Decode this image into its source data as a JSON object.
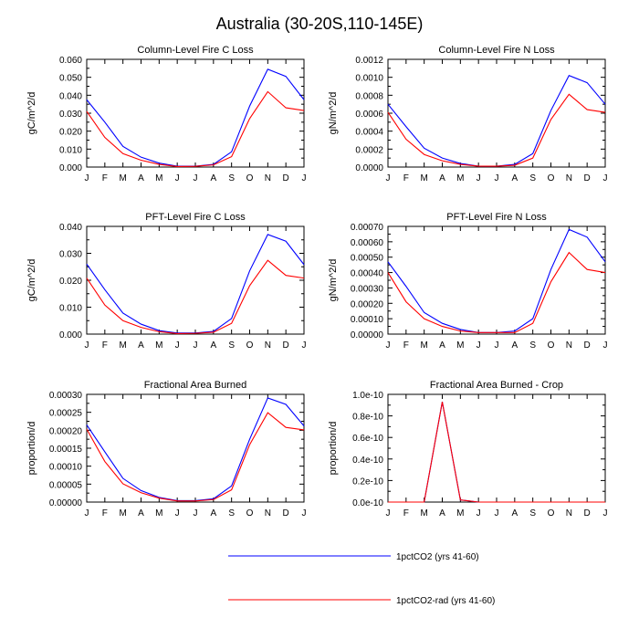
{
  "figure": {
    "title": "Australia (30-20S,110-145E)"
  },
  "legend": {
    "items": [
      {
        "label": "1pctCO2 (yrs 41-60)",
        "color": "#0000ff"
      },
      {
        "label": "1pctCO2-rad (yrs 41-60)",
        "color": "#ff0000"
      }
    ]
  },
  "chart_data": [
    {
      "type": "line",
      "title": "Column-Level Fire C Loss",
      "ylabel": "gC/m^2/d",
      "categories": [
        "J",
        "F",
        "M",
        "A",
        "M",
        "J",
        "J",
        "A",
        "S",
        "O",
        "N",
        "D",
        "J"
      ],
      "ylim": [
        0,
        0.06
      ],
      "yticks": [
        "0.000",
        "0.010",
        "0.020",
        "0.030",
        "0.040",
        "0.050",
        "0.060"
      ],
      "series": [
        {
          "name": "1pctCO2 (yrs 41-60)",
          "color": "#0000ff",
          "values": [
            0.0375,
            0.025,
            0.0115,
            0.0055,
            0.0022,
            0.0005,
            0.0005,
            0.0015,
            0.0085,
            0.034,
            0.0545,
            0.0505,
            0.0375
          ]
        },
        {
          "name": "1pctCO2-rad (yrs 41-60)",
          "color": "#ff0000",
          "values": [
            0.031,
            0.0165,
            0.0075,
            0.0038,
            0.0015,
            0.0003,
            0.0004,
            0.0012,
            0.0058,
            0.027,
            0.042,
            0.033,
            0.0315
          ]
        }
      ]
    },
    {
      "type": "line",
      "title": "Column-Level Fire N Loss",
      "ylabel": "gN/m^2/d",
      "categories": [
        "J",
        "F",
        "M",
        "A",
        "M",
        "J",
        "J",
        "A",
        "S",
        "O",
        "N",
        "D",
        "J"
      ],
      "ylim": [
        0,
        0.0012
      ],
      "yticks": [
        "0.0000",
        "0.0002",
        "0.0004",
        "0.0006",
        "0.0008",
        "0.0010",
        "0.0012"
      ],
      "series": [
        {
          "name": "1pctCO2 (yrs 41-60)",
          "color": "#0000ff",
          "values": [
            0.0007,
            0.00045,
            0.00021,
            0.0001,
            4e-05,
            1e-05,
            1e-05,
            3e-05,
            0.00015,
            0.00063,
            0.00102,
            0.00094,
            0.0007
          ]
        },
        {
          "name": "1pctCO2-rad (yrs 41-60)",
          "color": "#ff0000",
          "values": [
            0.00061,
            0.00031,
            0.00014,
            7e-05,
            3e-05,
            1e-05,
            1e-05,
            2e-05,
            0.0001,
            0.00053,
            0.00081,
            0.00064,
            0.00061
          ]
        }
      ]
    },
    {
      "type": "line",
      "title": "PFT-Level Fire C Loss",
      "ylabel": "gC/m^2/d",
      "categories": [
        "J",
        "F",
        "M",
        "A",
        "M",
        "J",
        "J",
        "A",
        "S",
        "O",
        "N",
        "D",
        "J"
      ],
      "ylim": [
        0,
        0.04
      ],
      "yticks": [
        "0.000",
        "0.010",
        "0.020",
        "0.030",
        "0.040"
      ],
      "series": [
        {
          "name": "1pctCO2 (yrs 41-60)",
          "color": "#0000ff",
          "values": [
            0.026,
            0.0165,
            0.0078,
            0.0037,
            0.0013,
            0.0004,
            0.0004,
            0.001,
            0.0058,
            0.0235,
            0.037,
            0.0345,
            0.0258
          ]
        },
        {
          "name": "1pctCO2-rad (yrs 41-60)",
          "color": "#ff0000",
          "values": [
            0.0208,
            0.0108,
            0.005,
            0.0025,
            0.0009,
            0.0002,
            0.0003,
            0.0007,
            0.004,
            0.018,
            0.0274,
            0.0218,
            0.0208
          ]
        }
      ]
    },
    {
      "type": "line",
      "title": "PFT-Level Fire N Loss",
      "ylabel": "gN/m^2/d",
      "categories": [
        "J",
        "F",
        "M",
        "A",
        "M",
        "J",
        "J",
        "A",
        "S",
        "O",
        "N",
        "D",
        "J"
      ],
      "ylim": [
        0,
        0.0007
      ],
      "yticks": [
        "0.00000",
        "0.00010",
        "0.00020",
        "0.00030",
        "0.00040",
        "0.00050",
        "0.00060",
        "0.00070"
      ],
      "series": [
        {
          "name": "1pctCO2 (yrs 41-60)",
          "color": "#0000ff",
          "values": [
            0.00047,
            0.00031,
            0.00014,
            7e-05,
            3e-05,
            1e-05,
            1e-05,
            2e-05,
            0.0001,
            0.00042,
            0.00068,
            0.00063,
            0.00047
          ]
        },
        {
          "name": "1pctCO2-rad (yrs 41-60)",
          "color": "#ff0000",
          "values": [
            0.0004,
            0.00021,
            0.0001,
            5e-05,
            2e-05,
            1e-05,
            1e-05,
            1e-05,
            7e-05,
            0.00034,
            0.00053,
            0.00042,
            0.0004
          ]
        }
      ]
    },
    {
      "type": "line",
      "title": "Fractional Area Burned",
      "ylabel": "proportion/d",
      "categories": [
        "J",
        "F",
        "M",
        "A",
        "M",
        "J",
        "J",
        "A",
        "S",
        "O",
        "N",
        "D",
        "J"
      ],
      "ylim": [
        0,
        0.0003
      ],
      "yticks": [
        "0.00000",
        "0.00005",
        "0.00010",
        "0.00015",
        "0.00020",
        "0.00025",
        "0.00030"
      ],
      "series": [
        {
          "name": "1pctCO2 (yrs 41-60)",
          "color": "#0000ff",
          "values": [
            0.000215,
            0.00014,
            6.6e-05,
            3.2e-05,
            1.3e-05,
            4e-06,
            4e-06,
            9e-06,
            4.5e-05,
            0.000175,
            0.00029,
            0.000272,
            0.000212
          ]
        },
        {
          "name": "1pctCO2-rad (yrs 41-60)",
          "color": "#ff0000",
          "values": [
            0.000203,
            0.000113,
            5.1e-05,
            2.6e-05,
            1.1e-05,
            3e-06,
            3e-06,
            7e-06,
            3.4e-05,
            0.00016,
            0.000249,
            0.000208,
            0.000201
          ]
        }
      ]
    },
    {
      "type": "line",
      "title": "Fractional Area Burned - Crop",
      "ylabel": "proportion/d",
      "categories": [
        "J",
        "F",
        "M",
        "A",
        "M",
        "J",
        "J",
        "A",
        "S",
        "O",
        "N",
        "D",
        "J"
      ],
      "ylim": [
        0,
        1e-10
      ],
      "yticks": [
        "0.0e-10",
        "0.2e-10",
        "0.4e-10",
        "0.6e-10",
        "0.8e-10",
        "1.0e-10"
      ],
      "series": [
        {
          "name": "1pctCO2 (yrs 41-60)",
          "color": "#0000ff",
          "values": [
            0,
            0,
            0,
            9.3e-11,
            2e-12,
            0,
            0,
            0,
            0,
            0,
            0,
            0,
            0
          ]
        },
        {
          "name": "1pctCO2-rad (yrs 41-60)",
          "color": "#ff0000",
          "values": [
            0,
            0,
            0,
            9.3e-11,
            2e-12,
            0,
            0,
            0,
            0,
            0,
            0,
            0,
            0
          ]
        }
      ]
    }
  ]
}
